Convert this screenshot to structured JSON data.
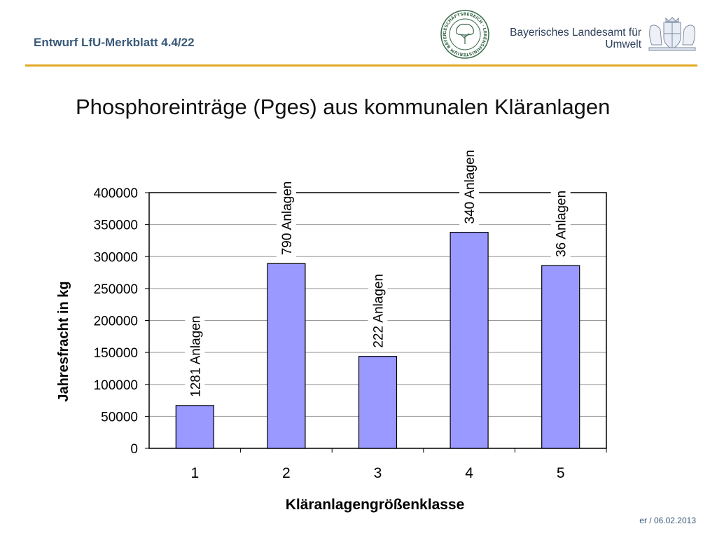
{
  "header": {
    "doc_label": "Entwurf LfU-Merkblatt 4.4/22",
    "seal_text": "GESCHÄFTSBEREICH · LEBENSMINISTERIUM BAYERN.DE ·",
    "agency_line1": "Bayerisches Landesamt für",
    "agency_line2": "Umwelt"
  },
  "slide": {
    "title": "Phosphoreinträge (Pges) aus kommunalen Kläranlagen"
  },
  "footer": {
    "date": "er / 06.02.2013"
  },
  "colors": {
    "accent_line": "#e3a925",
    "bar_fill": "#9999ff",
    "header_text": "#3a5a7a"
  },
  "chart_data": {
    "type": "bar",
    "title": "",
    "xlabel": "Kläranlagengrößenklasse",
    "ylabel": "Jahresfracht in kg",
    "categories": [
      "1",
      "2",
      "3",
      "4",
      "5"
    ],
    "values": [
      67000,
      289000,
      144000,
      338000,
      286000
    ],
    "annotations": [
      "1281 Anlagen",
      "790 Anlagen",
      "222 Anlagen",
      "340 Anlagen",
      "36 Anlagen"
    ],
    "ylim": [
      0,
      400000
    ],
    "yticks": [
      0,
      50000,
      100000,
      150000,
      200000,
      250000,
      300000,
      350000,
      400000
    ],
    "grid": true,
    "legend": "none"
  }
}
